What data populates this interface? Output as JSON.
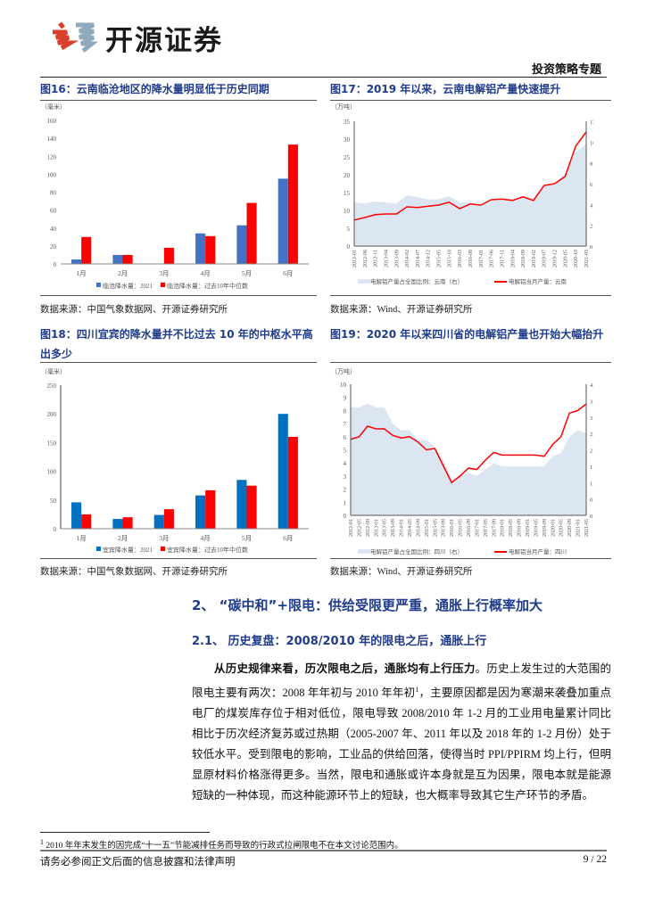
{
  "header": {
    "brand": "开源证券",
    "doc_type": "投资策略专题",
    "logo_colors": [
      "#d9412e",
      "#8fa9bd"
    ]
  },
  "figures": [
    {
      "title": "图16：云南临沧地区的降水量明显低于历史同期",
      "source": "数据来源：中国气象数据网、开源证券研究所"
    },
    {
      "title": "图17：2019 年以来，云南电解铝产量快速提升",
      "source": "数据来源：Wind、开源证券研究所"
    },
    {
      "title": "图18：四川宜宾的降水量并不比过去 10 年的中枢水平高出多少",
      "source": "数据来源：中国气象数据网、开源证券研究所"
    },
    {
      "title": "图19：2020 年以来四川省的电解铝产量也开始大幅抬升",
      "source": "数据来源：Wind、开源证券研究所"
    }
  ],
  "chart_data": [
    {
      "type": "bar",
      "unit": "（毫米）",
      "categories": [
        "1月",
        "2月",
        "3月",
        "4月",
        "5月",
        "6月"
      ],
      "ylim": [
        0,
        160
      ],
      "yticks": [
        0,
        20,
        40,
        60,
        80,
        100,
        120,
        140,
        160
      ],
      "series": [
        {
          "name": "临沧降水量：2021",
          "color": "#4472c4",
          "values": [
            5,
            10,
            0,
            34,
            43,
            95
          ]
        },
        {
          "name": "临沧降水量：过去10年中位数",
          "color": "#ff0000",
          "values": [
            30,
            10,
            18,
            31,
            68,
            133
          ]
        }
      ],
      "legend": "bottom"
    },
    {
      "type": "line",
      "unit": "（万吨）",
      "x": [
        "2012-01",
        "2012-06",
        "2012-11",
        "2013-04",
        "2013-09",
        "2014-02",
        "2014-07",
        "2014-12",
        "2015-05",
        "2015-10",
        "2016-03",
        "2016-08",
        "2017-01",
        "2017-06",
        "2017-11",
        "2018-04",
        "2018-09",
        "2019-02",
        "2019-07",
        "2019-12",
        "2020-05",
        "2020-10",
        "2021-03"
      ],
      "ylim": [
        0,
        35
      ],
      "yticks": [
        0,
        5,
        10,
        15,
        20,
        25,
        30,
        35
      ],
      "y2lim": [
        0,
        12
      ],
      "y2ticks": [
        "0.0%",
        "2.0%",
        "4.0%",
        "6.0%",
        "8.0%",
        "10.0%",
        "12.0%"
      ],
      "series": [
        {
          "name": "电解铝产量占全国比例：云南（右）",
          "type": "area",
          "axis": "right",
          "color": "#dce6f2",
          "values": [
            4.2,
            4.1,
            4.3,
            4.2,
            4.1,
            4.9,
            4.7,
            4.5,
            4.5,
            4.8,
            4.2,
            4.2,
            4.0,
            4.3,
            4.6,
            4.5,
            4.7,
            4.6,
            5.9,
            6.0,
            7.0,
            9.0,
            9.8
          ]
        },
        {
          "name": "电解铝当月产量：云南",
          "type": "line",
          "axis": "left",
          "color": "#ff0000",
          "values": [
            7.3,
            8.0,
            8.8,
            9.0,
            9.0,
            11.0,
            10.8,
            11.2,
            11.5,
            12.3,
            10.5,
            11.8,
            11.5,
            13.0,
            13.2,
            12.8,
            13.8,
            12.8,
            17.0,
            17.5,
            19.5,
            28.0,
            32.0
          ]
        }
      ],
      "legend": "bottom"
    },
    {
      "type": "bar",
      "unit": "（毫米）",
      "categories": [
        "1月",
        "2月",
        "3月",
        "4月",
        "5月",
        "6月"
      ],
      "ylim": [
        0,
        250
      ],
      "yticks": [
        0,
        50,
        100,
        150,
        200,
        250
      ],
      "series": [
        {
          "name": "宜宾降水量：2021",
          "color": "#0070c0",
          "values": [
            46,
            17,
            24,
            58,
            85,
            200
          ]
        },
        {
          "name": "宜宾降水量：过去10年中位数",
          "color": "#ff0000",
          "values": [
            25,
            20,
            34,
            67,
            75,
            160
          ]
        }
      ],
      "legend": "bottom"
    },
    {
      "type": "line",
      "unit": "（万吨）",
      "x": [
        "2012-01",
        "2012-05",
        "2012-09",
        "2013-01",
        "2013-05",
        "2013-09",
        "2014-01",
        "2014-05",
        "2014-09",
        "2015-01",
        "2015-05",
        "2015-09",
        "2016-01",
        "2016-05",
        "2016-09",
        "2017-01",
        "2017-05",
        "2017-09",
        "2018-01",
        "2018-05",
        "2018-09",
        "2019-01",
        "2019-05",
        "2019-09",
        "2020-01",
        "2020-05",
        "2020-09",
        "2021-01",
        "2021-05"
      ],
      "ylim": [
        0,
        10
      ],
      "yticks": [
        0,
        1,
        2,
        3,
        4,
        5,
        6,
        7,
        8,
        9,
        10
      ],
      "y2lim": [
        0,
        4
      ],
      "y2ticks": [
        "0.0%",
        "0.5%",
        "1.0%",
        "1.5%",
        "2.0%",
        "2.5%",
        "3.0%",
        "3.5%",
        "4.0%"
      ],
      "series": [
        {
          "name": "电解铝产量占全国比例：四川（右）",
          "type": "area",
          "axis": "right",
          "color": "#dce6f2",
          "values": [
            3.3,
            3.3,
            3.4,
            3.3,
            3.3,
            2.8,
            2.6,
            2.6,
            2.3,
            2.3,
            2.1,
            1.7,
            1.1,
            1.2,
            1.3,
            1.2,
            1.4,
            1.6,
            1.5,
            1.5,
            1.5,
            1.5,
            1.5,
            1.5,
            1.8,
            1.9,
            2.4,
            2.6,
            2.5
          ]
        },
        {
          "name": "电解铝当月产量：四川",
          "type": "line",
          "axis": "left",
          "color": "#ff0000",
          "values": [
            5.8,
            6.0,
            6.8,
            6.6,
            6.6,
            6.1,
            5.9,
            6.0,
            5.6,
            5.0,
            5.1,
            3.8,
            2.5,
            3.0,
            3.6,
            3.5,
            4.2,
            4.8,
            4.6,
            4.6,
            4.6,
            4.6,
            4.6,
            4.5,
            5.4,
            6.0,
            7.8,
            8.0,
            8.5
          ]
        }
      ],
      "legend": "bottom"
    }
  ],
  "section": {
    "heading": "2、 “碳中和”+限电：供给受限更严重，通胀上行概率加大",
    "subheading": "2.1、 历史复盘：2008/2010 年的限电之后，通胀上行",
    "para_bold": "从历史规律来看，历次限电之后，通胀均有上行压力",
    "para_text": "。历史上发生过的大范围的限电主要有两次：2008 年年初与 2010 年年初",
    "para_sup": "1",
    "para_rest": "，主要原因都是因为寒潮来袭叠加重点电厂的煤炭库存位于相对低位，限电导致 2008/2010 年 1-2 月的工业用电量累计同比相比于历次经济复苏或过热期（2005-2007 年、2011 年以及 2018 年的 1-2 月份）处于较低水平。受到限电的影响，工业品的供给回落，使得当时 PPI/PPIRM 均上行，但明显原材料价格涨得更多。当然，限电和通胀或许本身就是互为因果，限电本就是能源短缺的一种体现，而这种能源环节上的短缺，也大概率导致其它生产环节的矛盾。"
  },
  "footnote": {
    "mark": "1",
    "text": "2010 年年末发生的因完成“十一五”节能减排任务而导致的行政式拉闸限电不在本文讨论范围内。"
  },
  "footer": {
    "disclaimer": "请务必参阅正文后面的信息披露和法律声明",
    "page": "9 / 22"
  }
}
